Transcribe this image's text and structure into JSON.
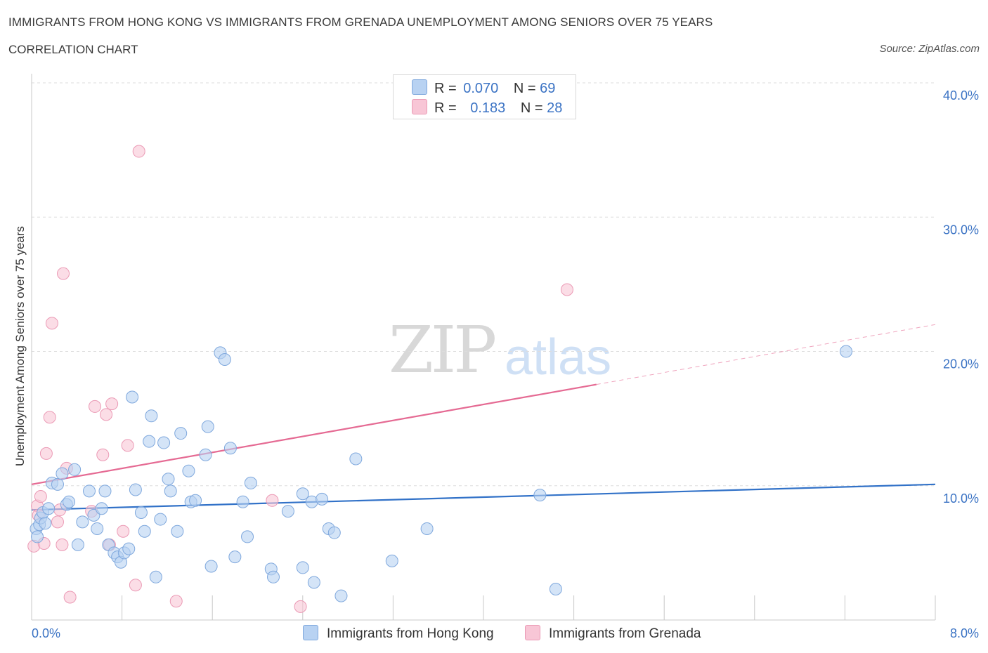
{
  "header": {
    "title": "IMMIGRANTS FROM HONG KONG VS IMMIGRANTS FROM GRENADA UNEMPLOYMENT AMONG SENIORS OVER 75 YEARS",
    "subtitle": "CORRELATION CHART",
    "source": "Source: ZipAtlas.com"
  },
  "watermark": {
    "zip": "ZIP",
    "atlas": "atlas"
  },
  "legend": {
    "r_label": "R =",
    "n_label": "N =",
    "hk": {
      "r": "0.070",
      "n": "69"
    },
    "gr": {
      "r": "0.183",
      "n": "28"
    }
  },
  "colors": {
    "hk_fill": "#b8d2f2",
    "hk_stroke": "#7fa8dd",
    "hk_line": "#3272c8",
    "gr_fill": "#f8c6d6",
    "gr_stroke": "#eb9ab5",
    "gr_line": "#e56a93",
    "tick_text": "#3b73c4",
    "grid": "#dddddd"
  },
  "chart_data": {
    "type": "scatter",
    "title": "IMMIGRANTS FROM HONG KONG VS IMMIGRANTS FROM GRENADA UNEMPLOYMENT AMONG SENIORS OVER 75 YEARS",
    "xlabel": "",
    "ylabel": "Unemployment Among Seniors over 75 years",
    "xlim": [
      0,
      8
    ],
    "ylim": [
      0,
      40
    ],
    "x_tick_labels": [
      "0.0%",
      "8.0%"
    ],
    "y_ticks": [
      10,
      20,
      30,
      40
    ],
    "y_tick_labels": [
      "10.0%",
      "20.0%",
      "30.0%",
      "40.0%"
    ],
    "series": [
      {
        "name": "Immigrants from Hong Kong",
        "r": 0.07,
        "n": 69,
        "trend": {
          "x0": 0.0,
          "y0": 8.2,
          "x1": 8.0,
          "y1": 10.1,
          "dash_from": null
        },
        "points": [
          [
            0.04,
            6.8
          ],
          [
            0.05,
            6.2
          ],
          [
            0.07,
            7.1
          ],
          [
            0.08,
            7.6
          ],
          [
            0.1,
            8.0
          ],
          [
            0.12,
            7.2
          ],
          [
            0.15,
            8.3
          ],
          [
            0.18,
            10.2
          ],
          [
            0.23,
            10.1
          ],
          [
            0.27,
            10.9
          ],
          [
            0.31,
            8.6
          ],
          [
            0.33,
            8.8
          ],
          [
            0.38,
            11.2
          ],
          [
            0.41,
            5.6
          ],
          [
            0.45,
            7.3
          ],
          [
            0.51,
            9.6
          ],
          [
            0.55,
            7.8
          ],
          [
            0.58,
            6.8
          ],
          [
            0.62,
            8.3
          ],
          [
            0.65,
            9.6
          ],
          [
            0.68,
            5.6
          ],
          [
            0.73,
            5.0
          ],
          [
            0.76,
            4.7
          ],
          [
            0.79,
            4.3
          ],
          [
            0.82,
            5.0
          ],
          [
            0.86,
            5.3
          ],
          [
            0.89,
            16.6
          ],
          [
            0.92,
            9.7
          ],
          [
            0.97,
            8.0
          ],
          [
            1.0,
            6.6
          ],
          [
            1.04,
            13.3
          ],
          [
            1.06,
            15.2
          ],
          [
            1.1,
            3.2
          ],
          [
            1.14,
            7.5
          ],
          [
            1.17,
            13.2
          ],
          [
            1.21,
            10.5
          ],
          [
            1.23,
            9.6
          ],
          [
            1.29,
            6.6
          ],
          [
            1.32,
            13.9
          ],
          [
            1.39,
            11.1
          ],
          [
            1.41,
            8.8
          ],
          [
            1.45,
            8.9
          ],
          [
            1.54,
            12.3
          ],
          [
            1.56,
            14.4
          ],
          [
            1.59,
            4.0
          ],
          [
            1.67,
            19.9
          ],
          [
            1.71,
            19.4
          ],
          [
            1.76,
            12.8
          ],
          [
            1.8,
            4.7
          ],
          [
            1.87,
            8.8
          ],
          [
            1.91,
            6.2
          ],
          [
            1.94,
            10.2
          ],
          [
            2.12,
            3.8
          ],
          [
            2.14,
            3.2
          ],
          [
            2.27,
            8.1
          ],
          [
            2.4,
            3.9
          ],
          [
            2.4,
            9.4
          ],
          [
            2.48,
            8.8
          ],
          [
            2.5,
            2.8
          ],
          [
            2.57,
            9.0
          ],
          [
            2.63,
            6.8
          ],
          [
            2.68,
            6.5
          ],
          [
            2.74,
            1.8
          ],
          [
            2.87,
            12.0
          ],
          [
            3.19,
            4.4
          ],
          [
            3.5,
            6.8
          ],
          [
            4.5,
            9.3
          ],
          [
            4.64,
            2.3
          ],
          [
            7.21,
            20.0
          ]
        ]
      },
      {
        "name": "Immigrants from Grenada",
        "r": 0.183,
        "n": 28,
        "trend": {
          "x0": 0.0,
          "y0": 10.1,
          "x1": 8.0,
          "y1": 22.0,
          "dash_from": 5.0
        },
        "points": [
          [
            0.02,
            5.5
          ],
          [
            0.05,
            8.5
          ],
          [
            0.08,
            9.2
          ],
          [
            0.11,
            5.7
          ],
          [
            0.13,
            12.4
          ],
          [
            0.16,
            15.1
          ],
          [
            0.18,
            22.1
          ],
          [
            0.23,
            7.3
          ],
          [
            0.25,
            8.2
          ],
          [
            0.27,
            5.6
          ],
          [
            0.28,
            25.8
          ],
          [
            0.31,
            11.3
          ],
          [
            0.34,
            1.7
          ],
          [
            0.53,
            8.1
          ],
          [
            0.56,
            15.9
          ],
          [
            0.63,
            12.3
          ],
          [
            0.66,
            15.3
          ],
          [
            0.69,
            5.6
          ],
          [
            0.71,
            16.1
          ],
          [
            0.81,
            6.6
          ],
          [
            0.85,
            13.0
          ],
          [
            0.92,
            2.6
          ],
          [
            0.95,
            34.9
          ],
          [
            1.28,
            1.4
          ],
          [
            2.13,
            8.9
          ],
          [
            2.38,
            1.0
          ],
          [
            4.74,
            24.6
          ],
          [
            0.06,
            7.8
          ]
        ]
      }
    ]
  },
  "bottom_legend": {
    "hk_label": "Immigrants from Hong Kong",
    "gr_label": "Immigrants from Grenada"
  }
}
